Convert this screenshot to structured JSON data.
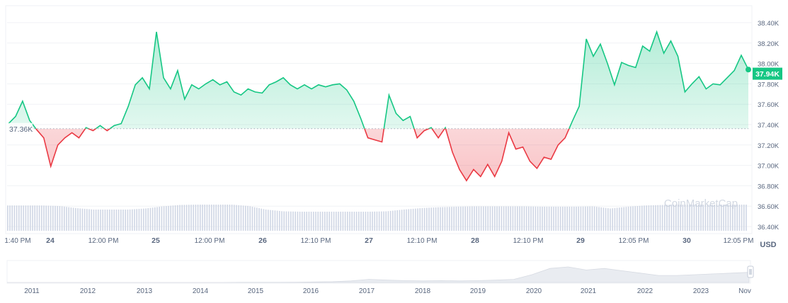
{
  "chart_data": {
    "type": "line",
    "title": "",
    "currency_label": "USD",
    "baseline_value": 37.36,
    "baseline_label": "37.36K",
    "current_value": 37.94,
    "current_label": "37.94K",
    "ylim": [
      36.4,
      38.4
    ],
    "y_ticks": [
      "38.40K",
      "38.20K",
      "38.00K",
      "37.80K",
      "37.60K",
      "37.40K",
      "37.20K",
      "37.00K",
      "36.80K",
      "36.60K",
      "36.40K"
    ],
    "y_tick_values": [
      38.4,
      38.2,
      38.0,
      37.8,
      37.6,
      37.4,
      37.2,
      37.0,
      36.8,
      36.6,
      36.4
    ],
    "x_ticks": [
      {
        "label": "1:40 PM",
        "bold": false
      },
      {
        "label": "24",
        "bold": true
      },
      {
        "label": "12:00 PM",
        "bold": false
      },
      {
        "label": "25",
        "bold": true
      },
      {
        "label": "12:00 PM",
        "bold": false
      },
      {
        "label": "26",
        "bold": true
      },
      {
        "label": "12:10 PM",
        "bold": false
      },
      {
        "label": "27",
        "bold": true
      },
      {
        "label": "12:10 PM",
        "bold": false
      },
      {
        "label": "28",
        "bold": true
      },
      {
        "label": "12:10 PM",
        "bold": false
      },
      {
        "label": "29",
        "bold": true
      },
      {
        "label": "12:05 PM",
        "bold": false
      },
      {
        "label": "30",
        "bold": true
      },
      {
        "label": "12:05 PM",
        "bold": false
      }
    ],
    "price_k": [
      37.41,
      37.48,
      37.63,
      37.44,
      37.35,
      37.27,
      36.99,
      37.2,
      37.27,
      37.32,
      37.27,
      37.37,
      37.34,
      37.39,
      37.34,
      37.39,
      37.41,
      37.58,
      37.79,
      37.86,
      37.75,
      38.31,
      37.86,
      37.75,
      37.93,
      37.65,
      37.79,
      37.75,
      37.8,
      37.84,
      37.79,
      37.82,
      37.72,
      37.69,
      37.75,
      37.72,
      37.71,
      37.79,
      37.82,
      37.86,
      37.79,
      37.75,
      37.79,
      37.75,
      37.79,
      37.77,
      37.79,
      37.8,
      37.74,
      37.63,
      37.46,
      37.27,
      37.25,
      37.23,
      37.69,
      37.51,
      37.44,
      37.48,
      37.27,
      37.34,
      37.37,
      37.27,
      37.37,
      37.13,
      36.96,
      36.85,
      36.96,
      36.89,
      37.01,
      36.89,
      37.04,
      37.32,
      37.16,
      37.18,
      37.04,
      36.97,
      37.08,
      37.06,
      37.2,
      37.27,
      37.43,
      37.58,
      38.24,
      38.07,
      38.19,
      38.0,
      37.79,
      38.01,
      37.98,
      37.96,
      38.17,
      38.12,
      38.31,
      38.1,
      38.22,
      38.07,
      37.72,
      37.8,
      37.87,
      37.75,
      37.8,
      37.79,
      37.86,
      37.93,
      38.08,
      37.94
    ],
    "volume_relative": [
      0.95,
      0.95,
      0.95,
      0.92,
      0.8,
      0.72,
      0.72,
      0.72,
      0.78,
      0.9,
      0.98,
      1.0,
      1.0,
      1.0,
      0.92,
      0.72,
      0.62,
      0.6,
      0.6,
      0.6,
      0.6,
      0.6,
      0.62,
      0.72,
      0.8,
      0.85,
      0.88,
      0.9,
      0.9,
      0.9,
      0.9,
      0.88,
      0.88,
      0.88,
      0.9,
      0.78,
      0.88,
      0.95,
      0.98,
      1.0,
      1.0,
      1.0,
      1.0,
      1.0
    ],
    "navigator": {
      "years": [
        "2011",
        "2012",
        "2013",
        "2014",
        "2015",
        "2016",
        "2017",
        "2018",
        "2019",
        "2020",
        "2021",
        "2022",
        "2023",
        "Nov"
      ],
      "history_relative": [
        0,
        0,
        0,
        0,
        0,
        0,
        0,
        0,
        0,
        0,
        0,
        0,
        0,
        0.01,
        0.01,
        0.01,
        0.02,
        0.03,
        0.05,
        0.1,
        0.2,
        0.15,
        0.12,
        0.1,
        0.12,
        0.1,
        0.12,
        0.15,
        0.2,
        0.5,
        0.9,
        1.0,
        0.8,
        0.9,
        0.75,
        0.6,
        0.45,
        0.45,
        0.5,
        0.55,
        0.6,
        0.65
      ]
    },
    "colors": {
      "up": "#16c784",
      "down": "#ea3943",
      "volume": "#cfd6e4",
      "text": "#58667e"
    },
    "watermark": "CoinMarketCap"
  }
}
